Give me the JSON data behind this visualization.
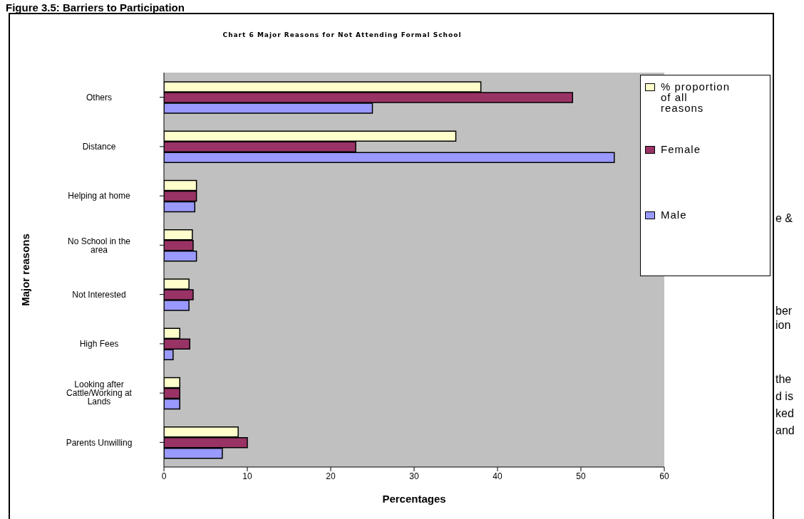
{
  "chart_data": {
    "type": "bar",
    "orientation": "horizontal",
    "title": "Figure 3.5: Barriers to Participation",
    "subtitle": "Chart 6 Major Reasons for Not Attending Formal School",
    "xlabel": "Percentages",
    "ylabel": "Major reasons",
    "categories": [
      "Others",
      "Distance",
      "Helping at home",
      "No School in the area",
      "Not Interested",
      "High Fees",
      "Looking after Cattle/Working at Lands",
      "Parents Unwilling"
    ],
    "series": [
      {
        "name": "% proportion of all reasons",
        "color": "#ffffcc",
        "values": [
          38,
          35,
          3.9,
          3.4,
          3,
          1.9,
          1.9,
          8.9
        ]
      },
      {
        "name": "Female",
        "color": "#993366",
        "values": [
          49,
          23,
          3.9,
          3.5,
          3.5,
          3.1,
          1.9,
          10
        ]
      },
      {
        "name": "Male",
        "color": "#9999ff",
        "values": [
          25,
          54,
          3.7,
          3.9,
          3,
          1.1,
          1.9,
          7
        ]
      }
    ],
    "xlim": [
      0,
      60
    ],
    "xticks": [
      0,
      10,
      20,
      30,
      40,
      50,
      60
    ],
    "legend": "top right",
    "grid": false,
    "annotations": [
      "e &",
      "ber",
      "ion",
      "the",
      "d is",
      "ked",
      "and"
    ]
  }
}
